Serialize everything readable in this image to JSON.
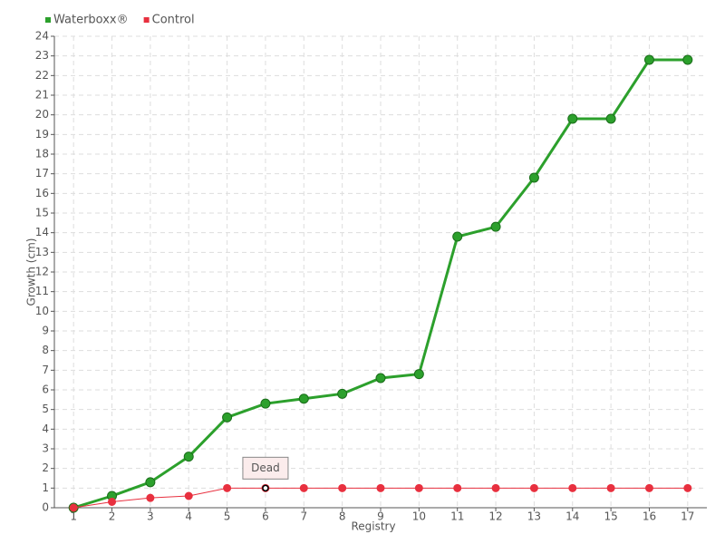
{
  "chart_data": {
    "type": "line",
    "x_label": "Registry",
    "y_label": "Growth (cm)",
    "categories": [
      "1",
      "2",
      "3",
      "4",
      "5",
      "6",
      "7",
      "8",
      "9",
      "10",
      "11",
      "12",
      "13",
      "14",
      "15",
      "16",
      "17"
    ],
    "series": [
      {
        "name": "Waterboxx®",
        "color": "#2ca02c",
        "values": [
          0,
          0.6,
          1.3,
          2.6,
          4.6,
          5.3,
          5.55,
          5.8,
          6.6,
          6.8,
          13.8,
          14.3,
          16.8,
          19.8,
          19.8,
          22.8,
          22.8
        ]
      },
      {
        "name": "Control",
        "color": "#e8303f",
        "values": [
          0,
          0.3,
          0.5,
          0.6,
          1,
          1,
          1,
          1,
          1,
          1,
          1,
          1,
          1,
          1,
          1,
          1,
          1
        ]
      }
    ],
    "annotations": [
      {
        "text": "Dead",
        "series": "Control",
        "category": "6"
      }
    ],
    "ylim": [
      0,
      24
    ],
    "yticks": [
      0,
      1,
      2,
      3,
      4,
      5,
      6,
      7,
      8,
      9,
      10,
      11,
      12,
      13,
      14,
      15,
      16,
      17,
      18,
      19,
      20,
      21,
      22,
      23,
      24
    ],
    "grid": true,
    "legend": "top-left"
  }
}
